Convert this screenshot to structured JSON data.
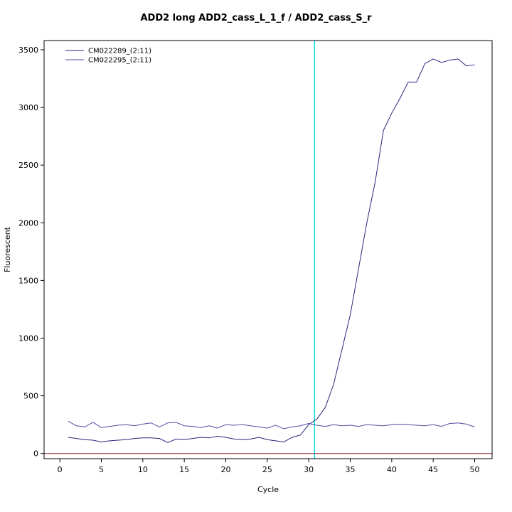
{
  "chart_data": {
    "type": "line",
    "title": "ADD2 long ADD2_cass_L_1_f / ADD2_cass_S_r",
    "xlabel": "Cycle",
    "ylabel": "Fluorescent",
    "xlim": [
      -1.9,
      52.1
    ],
    "ylim": [
      -45,
      3580
    ],
    "xticks": [
      0,
      5,
      10,
      15,
      20,
      25,
      30,
      35,
      40,
      45,
      50
    ],
    "yticks": [
      0,
      500,
      1000,
      1500,
      2000,
      2500,
      3000,
      3500
    ],
    "grid": false,
    "legend_position": "top-left",
    "x": [
      1,
      2,
      3,
      4,
      5,
      6,
      7,
      8,
      9,
      10,
      11,
      12,
      13,
      14,
      15,
      16,
      17,
      18,
      19,
      20,
      21,
      22,
      23,
      24,
      25,
      26,
      27,
      28,
      29,
      30,
      31,
      32,
      33,
      34,
      35,
      36,
      37,
      38,
      39,
      40,
      41,
      42,
      43,
      44,
      45,
      46,
      47,
      48,
      49,
      50
    ],
    "series": [
      {
        "name": "CM022289_(2:11)",
        "color": "#26267d",
        "values": [
          140,
          130,
          120,
          115,
          100,
          110,
          115,
          120,
          130,
          135,
          135,
          130,
          95,
          125,
          120,
          130,
          140,
          135,
          150,
          140,
          125,
          120,
          125,
          140,
          120,
          110,
          100,
          140,
          160,
          250,
          300,
          400,
          600,
          900,
          1200,
          1600,
          2000,
          2350,
          2800,
          2950,
          3080,
          3220,
          3220,
          3380,
          3420,
          3390,
          3410,
          3420,
          3360,
          3370
        ]
      },
      {
        "name": "CM022295_(2:11)",
        "color": "#4d4da0",
        "values": [
          280,
          240,
          230,
          270,
          225,
          235,
          245,
          250,
          240,
          255,
          265,
          230,
          265,
          270,
          240,
          235,
          225,
          240,
          220,
          250,
          245,
          250,
          240,
          230,
          220,
          245,
          215,
          230,
          240,
          260,
          245,
          235,
          250,
          240,
          245,
          235,
          250,
          245,
          240,
          250,
          255,
          250,
          245,
          240,
          250,
          235,
          260,
          265,
          255,
          230
        ]
      }
    ],
    "threshold_vline": {
      "x": 30.7,
      "color": "#00dde5"
    },
    "baseline_hline": {
      "y": 0,
      "color": "#8b2323"
    }
  }
}
